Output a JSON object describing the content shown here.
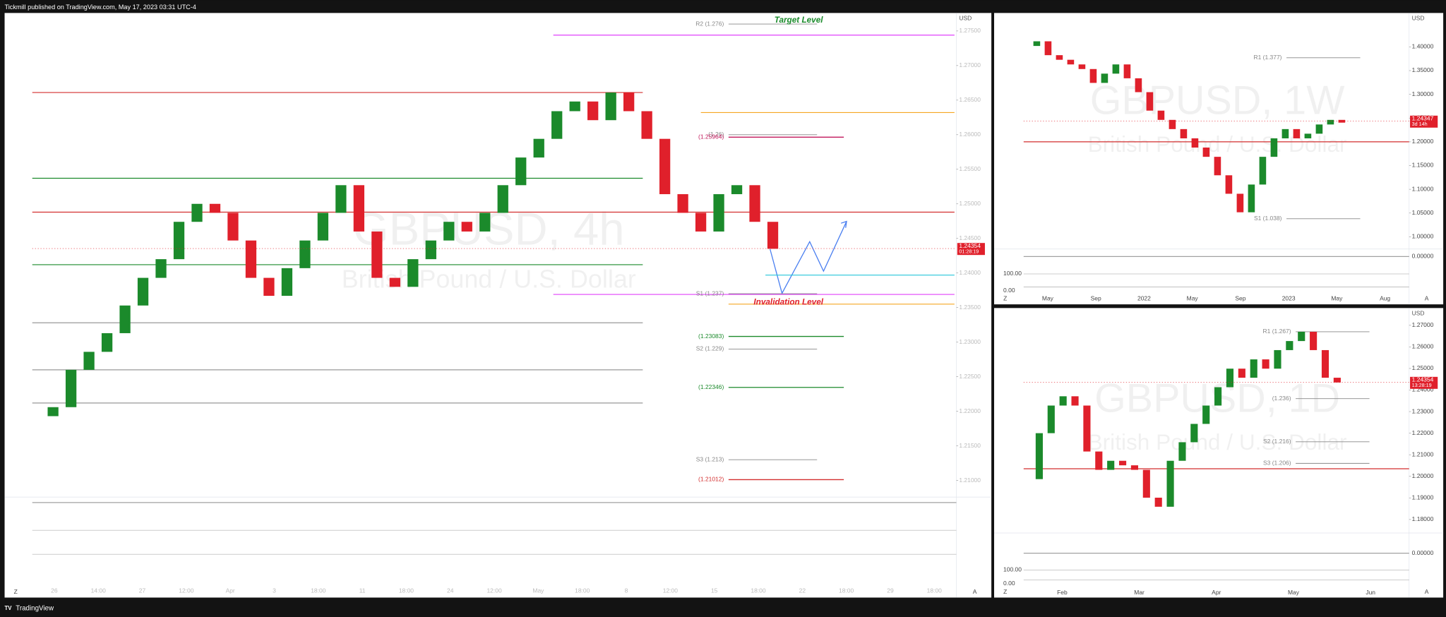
{
  "header": {
    "publisher": "Tickmill published on TradingView.com, May 17, 2023 03:31 UTC-4"
  },
  "footer": {
    "brand": "TradingView"
  },
  "panels": [
    {
      "symbol": "GBPUSD, 4h",
      "description": "British Pound / U.S. Dollar",
      "currency": "USD",
      "ylim": [
        1.208,
        1.278
      ],
      "yticks": [
        {
          "value": 1.21,
          "label": "1.21000"
        },
        {
          "value": 1.215,
          "label": "1.21500"
        },
        {
          "value": 1.22,
          "label": "1.22000"
        },
        {
          "value": 1.225,
          "label": "1.22500"
        },
        {
          "value": 1.23,
          "label": "1.23000"
        },
        {
          "value": 1.235,
          "label": "1.23500"
        },
        {
          "value": 1.24,
          "label": "1.24000"
        },
        {
          "value": 1.245,
          "label": "1.24500"
        },
        {
          "value": 1.25,
          "label": "1.25000"
        },
        {
          "value": 1.255,
          "label": "1.25500"
        },
        {
          "value": 1.26,
          "label": "1.26000"
        },
        {
          "value": 1.265,
          "label": "1.26500"
        },
        {
          "value": 1.27,
          "label": "1.27000"
        },
        {
          "value": 1.275,
          "label": "1.27500"
        }
      ],
      "x_labels": [
        "26",
        "14:00",
        "27",
        "12:00",
        "Apr",
        "3",
        "18:00",
        "11",
        "18:00",
        "24",
        "12:00",
        "May",
        "18:00",
        "8",
        "12:00",
        "15",
        "18:00",
        "22",
        "18:00",
        "29",
        "18:00"
      ],
      "closes": [
        1.2193,
        1.2206,
        1.226,
        1.2286,
        1.2313,
        1.2353,
        1.2393,
        1.242,
        1.2474,
        1.25,
        1.2487,
        1.2447,
        1.2393,
        1.2367,
        1.2407,
        1.2447,
        1.2487,
        1.2527,
        1.246,
        1.2393,
        1.238,
        1.242,
        1.2447,
        1.2474,
        1.246,
        1.2487,
        1.2527,
        1.2567,
        1.2594,
        1.2634,
        1.2648,
        1.2621,
        1.2661,
        1.2634,
        1.2594,
        1.2514,
        1.2487,
        1.246,
        1.2514,
        1.2527,
        1.2474,
        1.2435
      ],
      "last_price": {
        "value": 1.24354,
        "label": "1.24354",
        "timer": "01:28:19"
      },
      "levels": [
        {
          "value": 1.276,
          "label": "R2 (1.276)",
          "color": "#888888"
        },
        {
          "value": 1.26,
          "label": "(1.26)",
          "color": "#888888"
        },
        {
          "value": 1.25964,
          "label": "(1.25964)",
          "color": "#c2185b"
        },
        {
          "value": 1.237,
          "label": "S1 (1.237)",
          "color": "#888888"
        },
        {
          "value": 1.23083,
          "label": "(1.23083)",
          "color": "#1b8a2b"
        },
        {
          "value": 1.229,
          "label": "S2 (1.229)",
          "color": "#888888"
        },
        {
          "value": 1.22346,
          "label": "(1.22346)",
          "color": "#1b8a2b"
        },
        {
          "value": 1.21012,
          "label": "(1.21012)",
          "color": "#d32f2f"
        },
        {
          "value": 1.213,
          "label": "S3 (1.213)",
          "color": "#888888"
        }
      ],
      "hlines": [
        {
          "value": 1.2744,
          "color": "#e040fb"
        },
        {
          "value": 1.2632,
          "color": "#f5a623"
        },
        {
          "value": 1.2661,
          "color": "#d32f2f"
        },
        {
          "value": 1.2537,
          "color": "#1b8a2b"
        },
        {
          "value": 1.2488,
          "color": "#d32f2f"
        },
        {
          "value": 1.2412,
          "color": "#1b8a2b"
        },
        {
          "value": 1.2397,
          "color": "#26c6da"
        },
        {
          "value": 1.2369,
          "color": "#e040fb"
        },
        {
          "value": 1.2355,
          "color": "#f5a623"
        },
        {
          "value": 1.2328,
          "color": "#999999"
        },
        {
          "value": 1.226,
          "color": "#999999"
        },
        {
          "value": 1.2212,
          "color": "#999999"
        }
      ],
      "annotations": {
        "target": "Target Level",
        "invalidation": "Invalidation Level"
      },
      "indicator_labels": [],
      "buttons": [
        "Z",
        "A"
      ]
    },
    {
      "symbol": "GBPUSD, 1W",
      "description": "British Pound / U.S. Dollar",
      "currency": "USD",
      "ylim": [
        0.98,
        1.45
      ],
      "yticks": [
        {
          "value": 1.0,
          "label": "1.00000"
        },
        {
          "value": 1.05,
          "label": "1.05000"
        },
        {
          "value": 1.1,
          "label": "1.10000"
        },
        {
          "value": 1.15,
          "label": "1.15000"
        },
        {
          "value": 1.2,
          "label": "1.20000"
        },
        {
          "value": 1.25,
          "label": "1.25000"
        },
        {
          "value": 1.3,
          "label": "1.30000"
        },
        {
          "value": 1.35,
          "label": "1.35000"
        },
        {
          "value": 1.4,
          "label": "1.40000"
        }
      ],
      "x_labels": [
        "May",
        "Sep",
        "2022",
        "May",
        "Sep",
        "2023",
        "May",
        "Aug"
      ],
      "closes": [
        1.4019,
        1.4117,
        1.3825,
        1.3728,
        1.363,
        1.3533,
        1.3241,
        1.3436,
        1.363,
        1.3338,
        1.3046,
        1.2657,
        1.2462,
        1.2268,
        1.2073,
        1.1879,
        1.1684,
        1.1295,
        1.0906,
        1.0516,
        1.11,
        1.1684,
        1.2073,
        1.2268,
        1.2073,
        1.2171,
        1.2365,
        1.2462,
        1.2404
      ],
      "last_price": {
        "value": 1.24347,
        "label": "1.24347",
        "timer": "3d 14h"
      },
      "levels": [
        {
          "value": 1.377,
          "label": "R1 (1.377)",
          "color": "#888888"
        },
        {
          "value": 1.038,
          "label": "S1 (1.038)",
          "color": "#888888"
        }
      ],
      "hlines": [
        {
          "value": 1.2,
          "color": "#d32f2f"
        }
      ],
      "indicator_labels": [
        "0.00000",
        "100.00",
        "0.00"
      ],
      "buttons": [
        "Z",
        "A"
      ]
    },
    {
      "symbol": "GBPUSD, 1D",
      "description": "British Pound / U.S. Dollar",
      "currency": "USD",
      "ylim": [
        1.175,
        1.278
      ],
      "yticks": [
        {
          "value": 1.18,
          "label": "1.18000"
        },
        {
          "value": 1.19,
          "label": "1.19000"
        },
        {
          "value": 1.2,
          "label": "1.20000"
        },
        {
          "value": 1.21,
          "label": "1.21000"
        },
        {
          "value": 1.22,
          "label": "1.22000"
        },
        {
          "value": 1.23,
          "label": "1.23000"
        },
        {
          "value": 1.24,
          "label": "1.24000"
        },
        {
          "value": 1.25,
          "label": "1.25000"
        },
        {
          "value": 1.26,
          "label": "1.26000"
        },
        {
          "value": 1.27,
          "label": "1.27000"
        }
      ],
      "x_labels": [
        "Feb",
        "Mar",
        "Apr",
        "May",
        "Jun"
      ],
      "closes": [
        1.1987,
        1.22,
        1.2328,
        1.2371,
        1.2328,
        1.2115,
        1.203,
        1.2072,
        1.2051,
        1.203,
        1.1901,
        1.1859,
        1.2072,
        1.2158,
        1.2243,
        1.2328,
        1.2413,
        1.2499,
        1.2457,
        1.2542,
        1.2499,
        1.2585,
        1.2627,
        1.267,
        1.2585,
        1.2457,
        1.2435
      ],
      "last_price": {
        "value": 1.24354,
        "label": "1.24354",
        "timer": "13:28:19"
      },
      "levels": [
        {
          "value": 1.267,
          "label": "R1 (1.267)",
          "color": "#888888"
        },
        {
          "value": 1.236,
          "label": "(1.236)",
          "color": "#888888"
        },
        {
          "value": 1.216,
          "label": "S2 (1.216)",
          "color": "#888888"
        },
        {
          "value": 1.206,
          "label": "S3 (1.206)",
          "color": "#888888"
        }
      ],
      "hlines": [
        {
          "value": 1.2035,
          "color": "#d32f2f"
        }
      ],
      "indicator_labels": [
        "0.00000",
        "100.00",
        "0.00"
      ],
      "buttons": [
        "Z",
        "A"
      ]
    }
  ]
}
